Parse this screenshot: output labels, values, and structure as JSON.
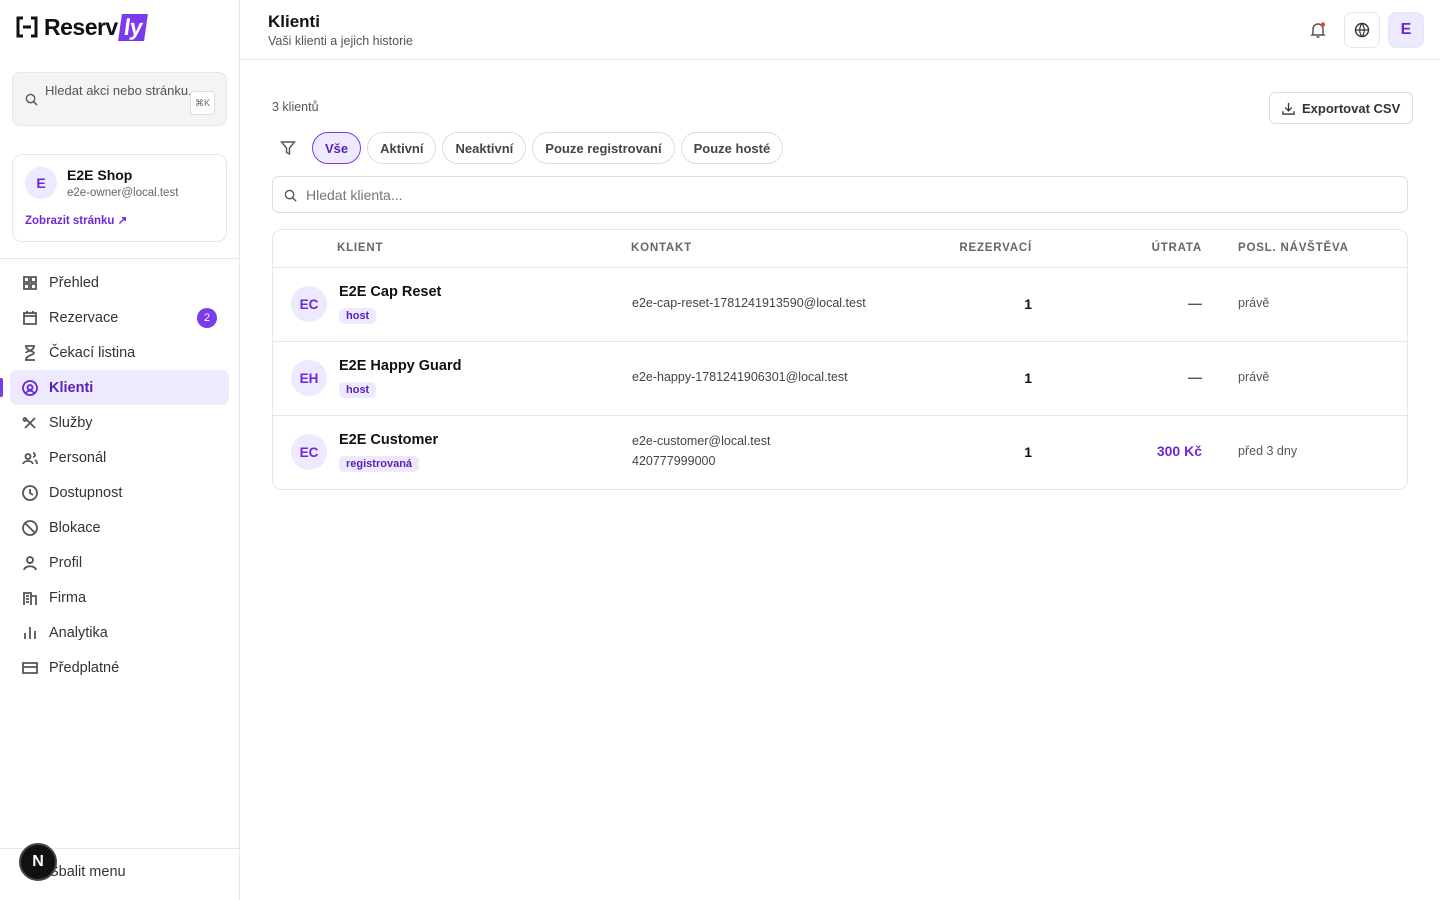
{
  "sidebar": {
    "logo": {
      "text": "Reserv",
      "badge": "ly"
    },
    "search": {
      "placeholder": "Hledat akci nebo stránku...",
      "shortcut": "⌘K"
    },
    "shop": {
      "avatar": "E",
      "name": "E2E Shop",
      "email": "e2e-owner@local.test",
      "link": "Zobrazit stránku"
    },
    "active_nav": 3,
    "nav": [
      {
        "label": "Přehled"
      },
      {
        "label": "Rezervace",
        "badge": 2
      },
      {
        "label": "Čekací listina"
      },
      {
        "label": "Klienti"
      },
      {
        "label": "Služby"
      },
      {
        "label": "Personál"
      },
      {
        "label": "Dostupnost"
      },
      {
        "label": "Blokace"
      },
      {
        "label": "Profil"
      },
      {
        "label": "Firma"
      },
      {
        "label": "Analytika"
      },
      {
        "label": "Předplatné"
      }
    ],
    "collapse": "Sbalit menu",
    "dev_badge": "N"
  },
  "header": {
    "title": "Klienti",
    "subtitle": "Vaši klienti a jejich historie",
    "avatar": "E"
  },
  "toolbar": {
    "count": "3 klientů",
    "export": "Exportovat CSV"
  },
  "active_filter": 0,
  "filters": [
    "Vše",
    "Aktivní",
    "Neaktivní",
    "Pouze registrovaní",
    "Pouze hosté"
  ],
  "search": {
    "placeholder": "Hledat klienta..."
  },
  "table": {
    "columns": [
      "KLIENT",
      "KONTAKT",
      "REZERVACÍ",
      "ÚTRATA",
      "POSL. NÁVŠTĚVA"
    ],
    "rows": [
      {
        "initials": "EC",
        "name": "E2E Cap Reset",
        "tag": "host",
        "contact": [
          "e2e-cap-reset-1781241913590@local.test"
        ],
        "reservations": 1,
        "spend": "—",
        "last": "právě"
      },
      {
        "initials": "EH",
        "name": "E2E Happy Guard",
        "tag": "host",
        "contact": [
          "e2e-happy-1781241906301@local.test"
        ],
        "reservations": 1,
        "spend": "—",
        "last": "právě"
      },
      {
        "initials": "EC",
        "name": "E2E Customer",
        "tag": "registrovaná",
        "contact": [
          "e2e-customer@local.test",
          "420777999000"
        ],
        "reservations": 1,
        "spend": "300 Kč",
        "last": "před 3 dny"
      }
    ]
  }
}
